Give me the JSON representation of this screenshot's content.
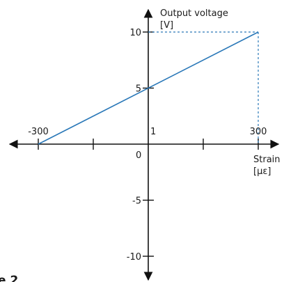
{
  "chart_data": {
    "type": "line",
    "title": "",
    "caption": "e 2",
    "xlabel": "Strain",
    "xunit": "[µε]",
    "ylabel": "Output voltage",
    "yunit": "[V]",
    "xlim": [
      -300,
      300
    ],
    "ylim": [
      -10,
      10
    ],
    "x_ticks": [
      -300,
      -150,
      0,
      150,
      300
    ],
    "x_tick_labels": [
      "-300",
      "300"
    ],
    "y_tick_labels": [
      "10",
      "5",
      "-5",
      "-10"
    ],
    "origin_label": "0",
    "point_label": "1",
    "grid": false,
    "series": [
      {
        "x": [
          -300,
          300
        ],
        "y": [
          0,
          10
        ],
        "color": "#2a78b8"
      }
    ],
    "reference_lines": {
      "x": 300,
      "y": 10,
      "style": "dashed",
      "color": "#2a78b8"
    }
  }
}
